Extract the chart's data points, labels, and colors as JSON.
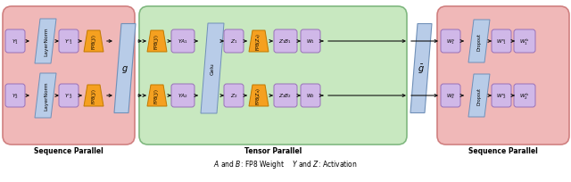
{
  "fig_width": 6.4,
  "fig_height": 2.05,
  "dpi": 100,
  "bg_color": "#ffffff",
  "sp_bg": "#f0b8b8",
  "tp_bg": "#c8e8c0",
  "purple": "#d0b8e8",
  "orange": "#f5a020",
  "blue_para": "#b8cce8",
  "caption": "A and B: FP8 Weight    Y and Z: Activation",
  "sp_label": "Sequence Parallel",
  "tp_label": "Tensor Parallel",
  "g_label": "g",
  "gbar_label": "ġ",
  "lfs": 5.5,
  "sfs": 4.2,
  "tfs": 5.0,
  "sp_ec": "#d08080",
  "tp_ec": "#80b880",
  "purple_ec": "#9870b8",
  "orange_ec": "#c07800",
  "blue_ec": "#7090b8"
}
